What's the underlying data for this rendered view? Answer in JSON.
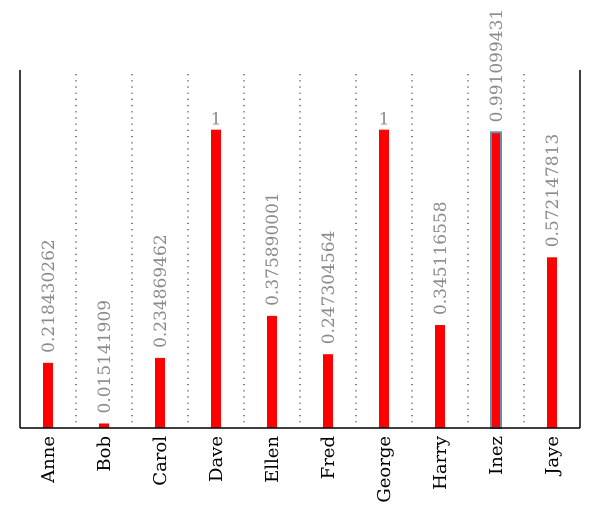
{
  "chart_data": {
    "type": "bar",
    "categories": [
      "Anne",
      "Bob",
      "Carol",
      "Dave",
      "Ellen",
      "Fred",
      "George",
      "Harry",
      "Inez",
      "Jaye"
    ],
    "values": [
      0.218430262,
      0.015141909,
      0.234869462,
      1,
      0.375890001,
      0.247304564,
      1,
      0.345116558,
      0.991099431,
      0.572147813
    ],
    "value_labels": [
      "0.218430262",
      "0.015141909",
      "0.234869462",
      "1",
      "0.375890001",
      "0.247304564",
      "1",
      "0.345116558",
      "0.991099431",
      "0.572147813"
    ],
    "highlighted_category": "Inez",
    "ylim": [
      0,
      1.2
    ],
    "grid": "vertical-dotted",
    "colors": {
      "bar": "#ff0000",
      "highlight_outline": "#6d87b0",
      "value_label": "#8a8a8a",
      "axis": "#000000",
      "grid": "#333333"
    }
  }
}
